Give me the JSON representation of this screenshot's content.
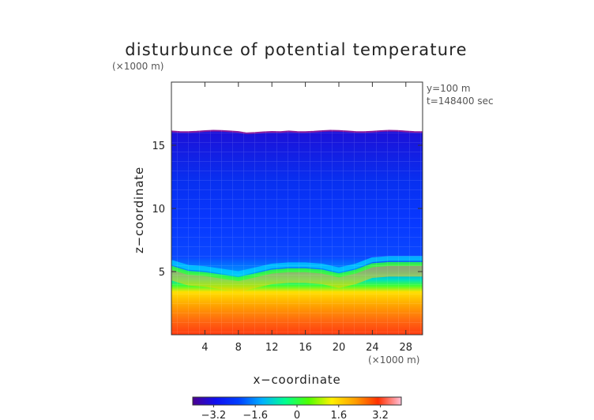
{
  "chart_data": {
    "type": "heatmap",
    "title": "disturbunce of potential temperature",
    "z_scale_note": "(×1000 m)",
    "x_scale_note": "(×1000 m)",
    "xlabel": "x−coordinate",
    "ylabel": "z−coordinate",
    "annotations": [
      "y=100 m",
      "t=148400 sec"
    ],
    "xlim": [
      0,
      30
    ],
    "ylim": [
      0,
      20
    ],
    "x_ticks": [
      4,
      8,
      12,
      16,
      20,
      24,
      28
    ],
    "x_tick_labels": [
      "4",
      "8",
      "12",
      "16",
      "20",
      "24",
      "28"
    ],
    "y_ticks": [
      5,
      10,
      15
    ],
    "y_tick_labels": [
      "5",
      "10",
      "15"
    ],
    "field_top_km": 16.1,
    "layer_interface": {
      "x": [
        0,
        2,
        4,
        6,
        8,
        10,
        12,
        14,
        16,
        18,
        20,
        22,
        24,
        26,
        28,
        30
      ],
      "z": [
        5.3,
        4.9,
        4.8,
        4.6,
        4.4,
        4.7,
        5.0,
        5.1,
        5.1,
        5.0,
        4.7,
        5.0,
        5.5,
        5.6,
        5.6,
        5.6
      ]
    },
    "colorbar": {
      "range": [
        -4,
        4
      ],
      "ticks": [
        -3.2,
        -1.6,
        0,
        1.6,
        3.2
      ],
      "tick_labels": [
        "−3.2",
        "−1.6",
        "0",
        "1.6",
        "3.2"
      ],
      "colors": [
        "#4b0090",
        "#1010f0",
        "#0040ff",
        "#00b0ff",
        "#00ff90",
        "#50ff00",
        "#fff000",
        "#ffa000",
        "#ff3000",
        "#ffc0d8"
      ]
    }
  }
}
